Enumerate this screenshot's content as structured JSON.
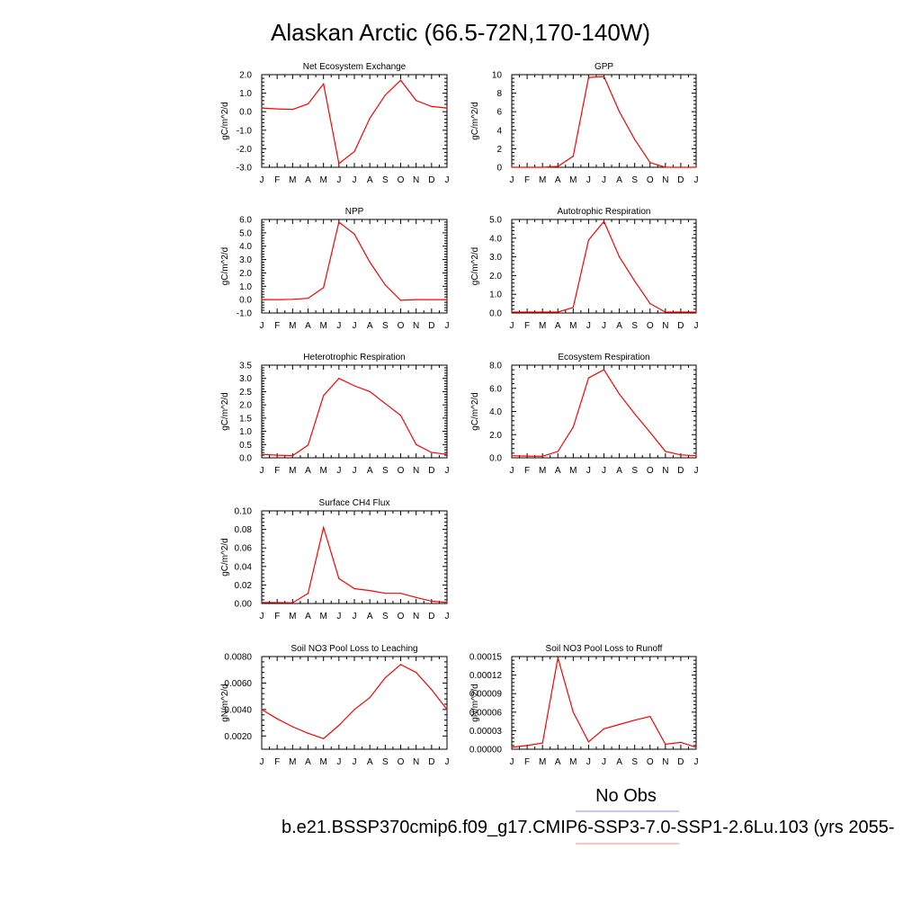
{
  "title": "Alaskan Arctic (66.5-72N,170-140W)",
  "legend": {
    "no_obs": "No Obs",
    "case": "b.e21.BSSP370cmip6.f09_g17.CMIP6-SSP3-7.0-SSP1-2.6Lu.103 (yrs 2055-",
    "no_obs_color": "#8888ff",
    "case_color": "#ff8888"
  },
  "line_color": "#ff0000",
  "chart_data": [
    {
      "type": "line",
      "title": "Net Ecosystem Exchange",
      "ylabel": "gC/m^2/d",
      "categories": [
        "J",
        "F",
        "M",
        "A",
        "M",
        "J",
        "J",
        "A",
        "S",
        "O",
        "N",
        "D",
        "J"
      ],
      "yticks": [
        "2.0",
        "1.0",
        "0.0",
        "-1.0",
        "-2.0",
        "-3.0"
      ],
      "ylim": [
        -3.0,
        2.0
      ],
      "values": [
        0.2,
        0.15,
        0.12,
        0.42,
        1.5,
        -2.8,
        -2.15,
        -0.35,
        0.9,
        1.7,
        0.6,
        0.28,
        0.2
      ]
    },
    {
      "type": "line",
      "title": "GPP",
      "ylabel": "gC/m^2/d",
      "categories": [
        "J",
        "F",
        "M",
        "A",
        "M",
        "J",
        "J",
        "A",
        "S",
        "O",
        "N",
        "D",
        "J"
      ],
      "yticks": [
        "10",
        "8",
        "6",
        "4",
        "2",
        "0"
      ],
      "ylim": [
        0,
        10
      ],
      "values": [
        0.0,
        0.0,
        0.0,
        0.1,
        1.2,
        9.7,
        9.8,
        6.0,
        3.0,
        0.5,
        0.0,
        0.0,
        0.0
      ]
    },
    {
      "type": "line",
      "title": "NPP",
      "ylabel": "gC/m^2/d",
      "categories": [
        "J",
        "F",
        "M",
        "A",
        "M",
        "J",
        "J",
        "A",
        "S",
        "O",
        "N",
        "D",
        "J"
      ],
      "yticks": [
        "6.0",
        "5.0",
        "4.0",
        "3.0",
        "2.0",
        "1.0",
        "0.0",
        "-1.0"
      ],
      "ylim": [
        -1.0,
        6.0
      ],
      "values": [
        0.0,
        0.0,
        0.02,
        0.1,
        0.9,
        5.8,
        4.9,
        2.8,
        1.1,
        -0.05,
        0.0,
        0.0,
        0.0
      ]
    },
    {
      "type": "line",
      "title": "Autotrophic Respiration",
      "ylabel": "gC/m^2/d",
      "categories": [
        "J",
        "F",
        "M",
        "A",
        "M",
        "J",
        "J",
        "A",
        "S",
        "O",
        "N",
        "D",
        "J"
      ],
      "yticks": [
        "5.0",
        "4.0",
        "3.0",
        "2.0",
        "1.0",
        "0.0"
      ],
      "ylim": [
        0.0,
        5.0
      ],
      "values": [
        0.05,
        0.05,
        0.05,
        0.05,
        0.3,
        3.9,
        4.9,
        3.0,
        1.7,
        0.5,
        0.05,
        0.05,
        0.05
      ]
    },
    {
      "type": "line",
      "title": "Heterotrophic Respiration",
      "ylabel": "gC/m^2/d",
      "categories": [
        "J",
        "F",
        "M",
        "A",
        "M",
        "J",
        "J",
        "A",
        "S",
        "O",
        "N",
        "D",
        "J"
      ],
      "yticks": [
        "3.5",
        "3.0",
        "2.5",
        "2.0",
        "1.5",
        "1.0",
        "0.5",
        "0.0"
      ],
      "ylim": [
        0.0,
        3.5
      ],
      "values": [
        0.13,
        0.1,
        0.08,
        0.48,
        2.35,
        3.0,
        2.72,
        2.5,
        2.05,
        1.6,
        0.5,
        0.2,
        0.13
      ]
    },
    {
      "type": "line",
      "title": "Ecosystem Respiration",
      "ylabel": "gC/m^2/d",
      "categories": [
        "J",
        "F",
        "M",
        "A",
        "M",
        "J",
        "J",
        "A",
        "S",
        "O",
        "N",
        "D",
        "J"
      ],
      "yticks": [
        "8.0",
        "6.0",
        "4.0",
        "2.0",
        "0.0"
      ],
      "ylim": [
        0.0,
        8.0
      ],
      "values": [
        0.18,
        0.15,
        0.13,
        0.55,
        2.65,
        6.9,
        7.6,
        5.5,
        3.8,
        2.2,
        0.55,
        0.25,
        0.18
      ]
    },
    {
      "type": "line",
      "title": "Surface CH4 Flux",
      "ylabel": "gC/m^2/d",
      "categories": [
        "J",
        "F",
        "M",
        "A",
        "M",
        "J",
        "J",
        "A",
        "S",
        "O",
        "N",
        "D",
        "J"
      ],
      "yticks": [
        "0.10",
        "0.08",
        "0.06",
        "0.04",
        "0.02",
        "0.00"
      ],
      "ylim": [
        0.0,
        0.1
      ],
      "values": [
        0.0012,
        0.001,
        0.0008,
        0.011,
        0.082,
        0.027,
        0.016,
        0.014,
        0.011,
        0.011,
        0.0065,
        0.0025,
        0.0012
      ]
    },
    {
      "type": "line",
      "title": "Soil NO3 Pool Loss to Leaching",
      "ylabel": "gN/m^2/d",
      "categories": [
        "J",
        "F",
        "M",
        "A",
        "M",
        "J",
        "J",
        "A",
        "S",
        "O",
        "N",
        "D",
        "J"
      ],
      "yticks": [
        "0.0080",
        "0.0060",
        "0.0040",
        "0.0020"
      ],
      "ylim": [
        0.001,
        0.008
      ],
      "values": [
        0.004,
        0.0033,
        0.0027,
        0.0022,
        0.0018,
        0.0028,
        0.004,
        0.0049,
        0.0064,
        0.0074,
        0.0068,
        0.0055,
        0.004
      ]
    },
    {
      "type": "line",
      "title": "Soil NO3 Pool Loss to Runoff",
      "ylabel": "gN/m^2/d",
      "categories": [
        "J",
        "F",
        "M",
        "A",
        "M",
        "J",
        "J",
        "A",
        "S",
        "O",
        "N",
        "D",
        "J"
      ],
      "yticks": [
        "0.00015",
        "0.00012",
        "0.00009",
        "0.00006",
        "0.00003",
        "0.00000"
      ],
      "ylim": [
        0.0,
        0.00015
      ],
      "values": [
        3e-06,
        6e-06,
        1e-05,
        0.000148,
        6e-05,
        1.2e-05,
        3.3e-05,
        4e-05,
        4.7e-05,
        5.3e-05,
        8e-06,
        1.1e-05,
        3e-06
      ]
    }
  ]
}
